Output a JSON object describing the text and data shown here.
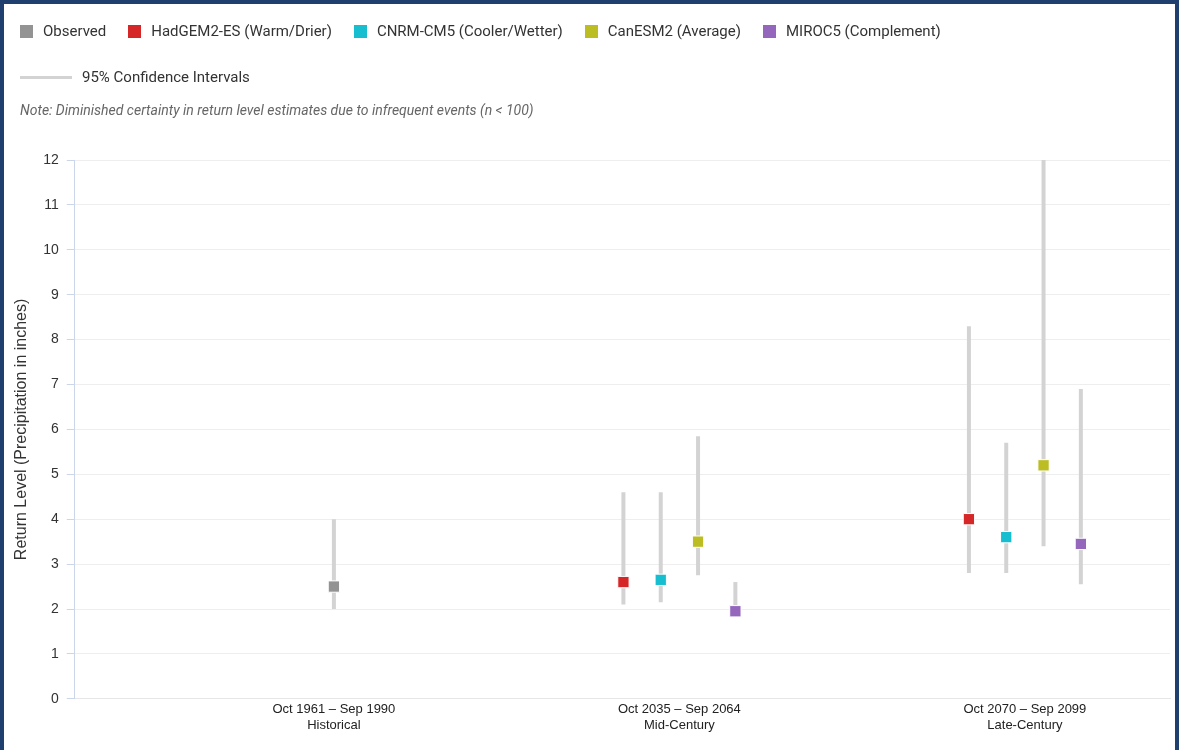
{
  "chart_data": {
    "type": "scatter",
    "subtitle": "Note: Diminished certainty in return level estimates due to infrequent events (n < 100)",
    "ylabel": "Return Level (Precipitation in inches)",
    "annotations": [
      "95% Confidence Intervals"
    ],
    "categories": [
      "Oct 1961 – Sep 1990 Historical",
      "Oct 2035 – Sep 2064 Mid-Century",
      "Oct 2070 – Sep 2099 Late-Century"
    ],
    "series": [
      {
        "name": "Observed",
        "color": "#939393",
        "values": [
          2.5,
          null,
          null
        ],
        "errors": [
          [
            2.0,
            4.0
          ],
          null,
          null
        ]
      },
      {
        "name": "HadGEM2-ES (Warm/Drier)",
        "color": "#d62728",
        "values": [
          null,
          2.6,
          4.0
        ],
        "errors": [
          null,
          [
            2.1,
            4.6
          ],
          [
            2.8,
            8.3
          ]
        ]
      },
      {
        "name": "CNRM-CM5 (Cooler/Wetter)",
        "color": "#17becf",
        "values": [
          null,
          2.65,
          3.6
        ],
        "errors": [
          null,
          [
            2.15,
            4.6
          ],
          [
            2.8,
            5.7
          ]
        ]
      },
      {
        "name": "CanESM2 (Average)",
        "color": "#bcbd22",
        "values": [
          null,
          3.5,
          5.2
        ],
        "errors": [
          null,
          [
            2.75,
            5.85
          ],
          [
            3.4,
            12.0
          ]
        ]
      },
      {
        "name": "MIROC5 (Complement)",
        "color": "#9467bd",
        "values": [
          null,
          1.95,
          3.45
        ],
        "errors": [
          null,
          [
            1.85,
            2.6
          ],
          [
            2.55,
            6.9
          ]
        ]
      }
    ],
    "ylim": [
      0,
      12
    ],
    "yticks": [
      0,
      1,
      2,
      3,
      4,
      5,
      6,
      7,
      8,
      9,
      10,
      11,
      12
    ],
    "grid": "y",
    "legend": "top left",
    "marker": "square"
  }
}
